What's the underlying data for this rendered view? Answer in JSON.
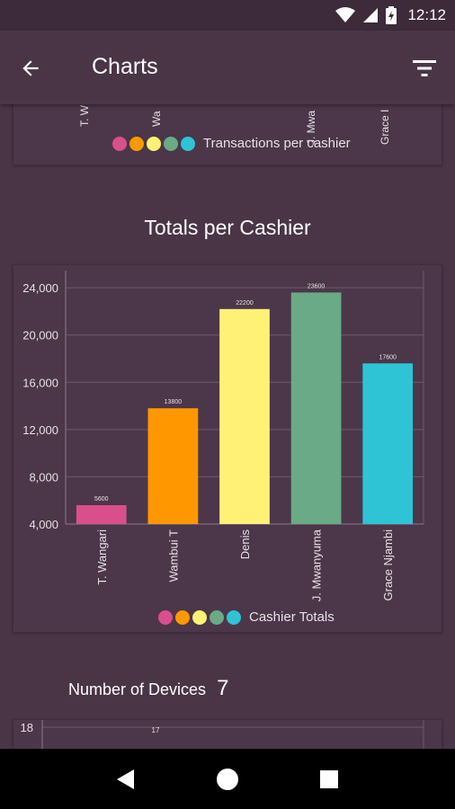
{
  "status_bar": {
    "time": "12:12",
    "icons": [
      "wifi-icon",
      "signal-icon",
      "battery-icon"
    ]
  },
  "app_bar": {
    "title": "Charts",
    "back_icon": "arrow-left-icon",
    "filter_icon": "filter-icon"
  },
  "colors": {
    "background": "#4a3547",
    "pink": "#d94f8c",
    "orange": "#ff9800",
    "yellow": "#fff176",
    "green": "#6aaa86",
    "cyan": "#2ec4d6"
  },
  "top_chart": {
    "partial_labels": [
      "T. W",
      "Wa",
      "J. Mwa",
      "Grace I"
    ],
    "legend_label": "Transactions per cashier"
  },
  "chart_data": [
    {
      "type": "bar",
      "title": "Totals per Cashier",
      "categories": [
        "T. Wangari",
        "Wambui T",
        "Denis",
        "J. Mwanyuma",
        "Grace Njambi"
      ],
      "values": [
        5600,
        13800,
        22200,
        23600,
        17600
      ],
      "data_labels": [
        "5600",
        "13800",
        "22200",
        "23600",
        "17600"
      ],
      "y_ticks": [
        "4,000",
        "8,000",
        "12,000",
        "16,000",
        "20,000",
        "24,000"
      ],
      "ylim": [
        4000,
        25000
      ],
      "grid": true,
      "legend": "Cashier Totals",
      "legend_position": "bottom-center",
      "colors": [
        "#d94f8c",
        "#ff9800",
        "#fff176",
        "#6aaa86",
        "#2ec4d6"
      ]
    }
  ],
  "devices": {
    "label": "Number of Devices",
    "count": "7",
    "partial_chart": {
      "top_tick": "18",
      "top_value": "17"
    }
  },
  "nav_bar": {
    "icons": [
      "back-triangle-icon",
      "home-circle-icon",
      "recents-square-icon"
    ]
  }
}
